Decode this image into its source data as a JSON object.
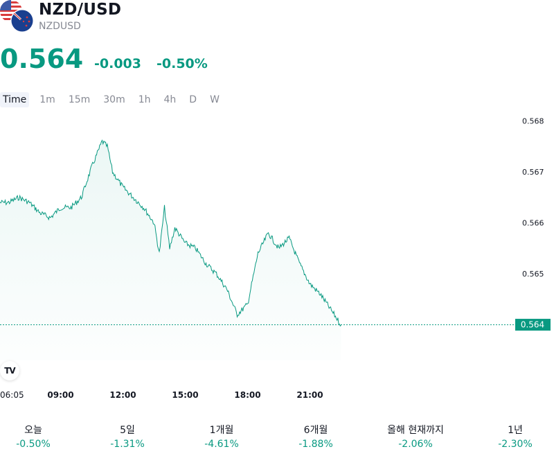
{
  "header": {
    "symbol": "NZD/USD",
    "ticker": "NZDUSD",
    "price": "0.564",
    "change_abs": "-0.003",
    "change_pct": "-0.50%",
    "icons": [
      "us-flag-icon",
      "nz-flag-icon"
    ]
  },
  "colors": {
    "accent": "#089981",
    "text": "#131722",
    "muted": "#868993"
  },
  "tabs": [
    {
      "label": "Time",
      "active": true
    },
    {
      "label": "1m"
    },
    {
      "label": "15m"
    },
    {
      "label": "30m"
    },
    {
      "label": "1h"
    },
    {
      "label": "4h"
    },
    {
      "label": "D"
    },
    {
      "label": "W"
    }
  ],
  "chart_data": {
    "type": "area",
    "y_axis": {
      "ticks": [
        "0.568",
        "0.567",
        "0.566",
        "0.565",
        "0.564"
      ],
      "range": [
        0.5633,
        0.5682
      ]
    },
    "x_axis": {
      "ticks": [
        "06:05",
        "09:00",
        "12:00",
        "15:00",
        "18:00",
        "21:00"
      ]
    },
    "last_price_label": "0.564",
    "series": [
      {
        "x": [
          "06:05",
          "06:30",
          "07:00",
          "07:30",
          "08:00",
          "08:30",
          "09:00",
          "09:30",
          "10:00",
          "10:30",
          "11:00",
          "11:15",
          "11:30",
          "12:00",
          "12:30",
          "13:00",
          "13:30",
          "13:45",
          "14:00",
          "14:15",
          "14:30",
          "15:00",
          "15:30",
          "16:00",
          "16:30",
          "17:00",
          "17:30",
          "18:00",
          "18:30",
          "19:00",
          "19:30",
          "20:00",
          "20:30",
          "21:00",
          "21:30",
          "22:00",
          "22:30"
        ],
        "values": [
          0.5664,
          0.5664,
          0.5665,
          0.5664,
          0.5662,
          0.5661,
          0.5663,
          0.5663,
          0.5665,
          0.5671,
          0.5676,
          0.5675,
          0.567,
          0.5667,
          0.5665,
          0.5663,
          0.566,
          0.5654,
          0.5663,
          0.5655,
          0.5659,
          0.5656,
          0.5655,
          0.5652,
          0.565,
          0.5647,
          0.5642,
          0.5644,
          0.5654,
          0.5658,
          0.5655,
          0.5657,
          0.5652,
          0.5648,
          0.5646,
          0.5643,
          0.564
        ]
      }
    ]
  },
  "performance": [
    {
      "label": "오늘",
      "value": "-0.50%"
    },
    {
      "label": "5일",
      "value": "-1.31%"
    },
    {
      "label": "1개월",
      "value": "-4.61%"
    },
    {
      "label": "6개월",
      "value": "-1.88%"
    },
    {
      "label": "올해 현재까지",
      "value": "-2.06%"
    },
    {
      "label": "1년",
      "value": "-2.30%"
    }
  ],
  "logo_text": "TV"
}
